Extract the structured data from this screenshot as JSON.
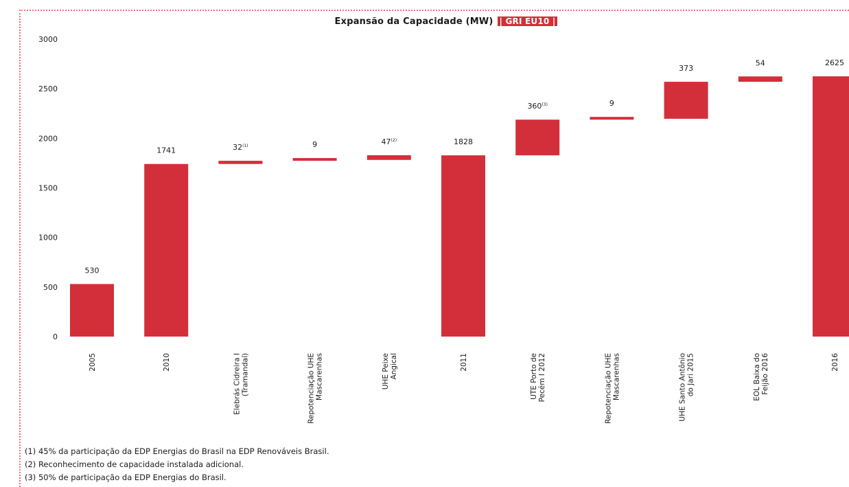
{
  "chart_data": {
    "type": "bar",
    "subtype": "waterfall",
    "title": "Expansão da Capacidade (MW)",
    "title_badge": "| GRI EU10 |",
    "ylim": [
      0,
      3000
    ],
    "yticks": [
      "0",
      "500",
      "1000",
      "1500",
      "2000",
      "2500",
      "3000"
    ],
    "grid": false,
    "bar_color": "#d32f3a",
    "bars": [
      {
        "category": [
          "2005"
        ],
        "label": "530",
        "sup": "",
        "base": 0,
        "value": 530
      },
      {
        "category": [
          "2010"
        ],
        "label": "1741",
        "sup": "",
        "base": 0,
        "value": 1741
      },
      {
        "category": [
          "Elebrás Cidreira I",
          "(Tramandaí)"
        ],
        "label": "32",
        "sup": "(1)",
        "base": 1741,
        "value": 32
      },
      {
        "category": [
          "Repotenciação UHE",
          "Mascarenhas"
        ],
        "label": "9",
        "sup": "",
        "base": 1773,
        "value": 9
      },
      {
        "category": [
          "UHE Peixe",
          "Angical"
        ],
        "label": "47",
        "sup": "(2)",
        "base": 1782,
        "value": 47
      },
      {
        "category": [
          "2011"
        ],
        "label": "1828",
        "sup": "",
        "base": 0,
        "value": 1828
      },
      {
        "category": [
          "UTE Porto de",
          "Pecém I 2012"
        ],
        "label": "360",
        "sup": "(3)",
        "base": 1828,
        "value": 360
      },
      {
        "category": [
          "Repotenciação UHE",
          "Mascarenhas"
        ],
        "label": "9",
        "sup": "",
        "base": 2188,
        "value": 9
      },
      {
        "category": [
          "UHE Santo Antônio",
          "do Jari 2015"
        ],
        "label": "373",
        "sup": "",
        "base": 2197,
        "value": 373
      },
      {
        "category": [
          "EOL Baixa do",
          "Feijão 2016"
        ],
        "label": "54",
        "sup": "",
        "base": 2570,
        "value": 54
      },
      {
        "category": [
          "2016"
        ],
        "label": "2625",
        "sup": "",
        "base": 0,
        "value": 2625
      }
    ]
  },
  "footnotes": [
    "(1) 45% da participação da EDP Energias do Brasil na EDP Renováveis Brasil.",
    "(2) Reconhecimento de capacidade instalada adicional.",
    "(3) 50% de participação da EDP Energias do Brasil."
  ]
}
